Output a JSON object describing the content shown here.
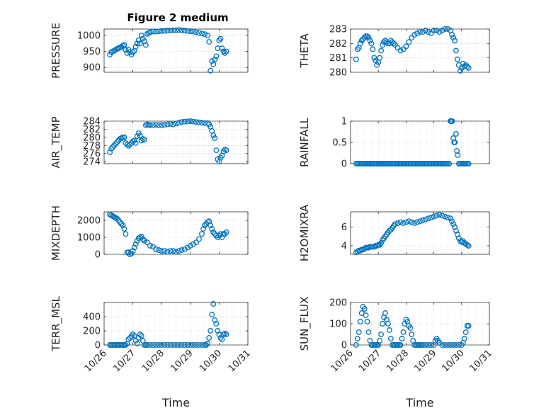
{
  "accent_color": "#0072BD",
  "chart_data": {
    "type": "scatter",
    "title": "Figure 2 medium",
    "time_tick_labels": [
      "10/26",
      "10/27",
      "10/28",
      "10/29",
      "10/30",
      "10/31"
    ],
    "xlim": [
      26,
      31
    ],
    "xlabel": "Time",
    "subplots": [
      {
        "ylabel": "PRESSURE",
        "ylim": [
          885,
          1020
        ],
        "yticks": [
          900,
          950,
          1000
        ],
        "x": [
          26.2,
          26.25,
          26.3,
          26.35,
          26.4,
          26.45,
          26.5,
          26.55,
          26.6,
          26.65,
          26.7,
          26.75,
          26.8,
          26.85,
          26.9,
          26.95,
          27.0,
          27.05,
          27.1,
          27.15,
          27.2,
          27.25,
          27.3,
          27.35,
          27.4,
          27.45,
          27.5,
          27.55,
          27.6,
          27.7,
          27.8,
          27.9,
          28.0,
          28.1,
          28.2,
          28.3,
          28.4,
          28.5,
          28.6,
          28.7,
          28.8,
          28.9,
          29.0,
          29.1,
          29.2,
          29.3,
          29.4,
          29.5,
          29.6,
          29.65,
          29.7,
          29.75,
          29.8,
          29.85,
          29.9,
          29.95,
          30.0,
          30.05,
          30.1,
          30.15,
          30.2,
          30.25
        ],
        "y": [
          940,
          948,
          950,
          952,
          955,
          958,
          960,
          962,
          964,
          968,
          970,
          955,
          945,
          955,
          948,
          940,
          948,
          952,
          965,
          975,
          985,
          975,
          1000,
          990,
          982,
          970,
          1005,
          1008,
          1010,
          1012,
          1012,
          1013,
          1014,
          1014,
          1015,
          1015,
          1016,
          1016,
          1017,
          1016,
          1015,
          1014,
          1013,
          1012,
          1010,
          1008,
          1006,
          1004,
          1000,
          980,
          890,
          920,
          910,
          925,
          935,
          960,
          985,
          990,
          960,
          950,
          945,
          950
        ]
      },
      {
        "ylabel": "THETA",
        "ylim": [
          280,
          283
        ],
        "yticks": [
          280,
          281,
          282,
          283
        ],
        "x": [
          26.2,
          26.25,
          26.3,
          26.35,
          26.4,
          26.45,
          26.5,
          26.55,
          26.6,
          26.65,
          26.7,
          26.75,
          26.8,
          26.85,
          26.9,
          26.95,
          27.0,
          27.05,
          27.1,
          27.15,
          27.2,
          27.25,
          27.3,
          27.35,
          27.4,
          27.45,
          27.5,
          27.55,
          27.6,
          27.7,
          27.8,
          27.9,
          28.0,
          28.1,
          28.2,
          28.3,
          28.4,
          28.5,
          28.6,
          28.7,
          28.8,
          28.9,
          29.0,
          29.1,
          29.2,
          29.3,
          29.4,
          29.5,
          29.6,
          29.65,
          29.7,
          29.75,
          29.8,
          29.85,
          29.9,
          29.95,
          30.0,
          30.05,
          30.1,
          30.15,
          30.2,
          30.25
        ],
        "y": [
          280.9,
          281.6,
          281.7,
          282.0,
          282.2,
          282.3,
          282.4,
          282.5,
          282.5,
          282.4,
          282.2,
          282.0,
          281.6,
          281.0,
          280.8,
          280.5,
          280.7,
          281.0,
          281.5,
          281.9,
          282.1,
          282.2,
          282.1,
          282.0,
          282.0,
          282.2,
          282.1,
          282.0,
          281.9,
          281.7,
          281.5,
          281.6,
          281.8,
          282.1,
          282.4,
          282.6,
          282.7,
          282.8,
          282.8,
          282.9,
          282.8,
          282.7,
          282.9,
          282.9,
          282.8,
          282.9,
          283.0,
          283.0,
          282.9,
          282.6,
          282.4,
          282.2,
          281.5,
          280.9,
          280.5,
          280.1,
          280.3,
          280.6,
          280.4,
          280.5,
          280.4,
          280.3
        ]
      },
      {
        "ylabel": "AIR_TEMP",
        "ylim": [
          273.5,
          284
        ],
        "yticks": [
          274,
          276,
          278,
          280,
          282,
          284
        ],
        "x": [
          26.2,
          26.25,
          26.3,
          26.35,
          26.4,
          26.45,
          26.5,
          26.55,
          26.6,
          26.65,
          26.7,
          26.75,
          26.8,
          26.85,
          26.9,
          26.95,
          27.0,
          27.05,
          27.1,
          27.15,
          27.2,
          27.25,
          27.3,
          27.35,
          27.4,
          27.45,
          27.5,
          27.55,
          27.6,
          27.7,
          27.8,
          27.9,
          28.0,
          28.1,
          28.2,
          28.3,
          28.4,
          28.5,
          28.6,
          28.7,
          28.8,
          28.9,
          29.0,
          29.1,
          29.2,
          29.3,
          29.4,
          29.5,
          29.6,
          29.65,
          29.7,
          29.75,
          29.8,
          29.85,
          29.9,
          29.95,
          30.0,
          30.05,
          30.1,
          30.15,
          30.2,
          30.25
        ],
        "y": [
          276.3,
          277.2,
          277.6,
          278.0,
          278.4,
          278.8,
          279.2,
          279.6,
          279.8,
          280.0,
          280.0,
          278.6,
          278.2,
          277.9,
          278.2,
          278.6,
          279.0,
          279.2,
          278.6,
          280.3,
          281.0,
          280.4,
          279.2,
          279.6,
          279.4,
          283.0,
          283.2,
          283.1,
          283.0,
          283.0,
          283.1,
          283.0,
          283.0,
          283.1,
          283.2,
          283.3,
          283.2,
          283.4,
          283.6,
          283.8,
          283.9,
          283.9,
          284.0,
          283.9,
          283.8,
          283.7,
          283.6,
          283.5,
          283.5,
          283.2,
          282.6,
          281.6,
          280.5,
          279.8,
          276.8,
          274.6,
          274.0,
          275.0,
          275.5,
          276.5,
          277.0,
          276.8
        ]
      },
      {
        "ylabel": "RAINFALL",
        "ylim": [
          0,
          1
        ],
        "yticks": [
          0,
          0.5,
          1
        ],
        "x": [
          26.2,
          26.25,
          26.3,
          26.35,
          26.4,
          26.45,
          26.5,
          26.55,
          26.6,
          26.65,
          26.7,
          26.75,
          26.8,
          26.85,
          26.9,
          26.95,
          27.0,
          27.05,
          27.1,
          27.15,
          27.2,
          27.25,
          27.3,
          27.35,
          27.4,
          27.45,
          27.5,
          27.55,
          27.6,
          27.65,
          27.7,
          27.75,
          27.8,
          27.85,
          27.9,
          27.95,
          28.0,
          28.05,
          28.1,
          28.15,
          28.2,
          28.25,
          28.3,
          28.35,
          28.4,
          28.45,
          28.5,
          28.55,
          28.6,
          28.65,
          28.7,
          28.75,
          28.8,
          28.85,
          28.9,
          28.95,
          29.0,
          29.05,
          29.1,
          29.15,
          29.2,
          29.25,
          29.3,
          29.35,
          29.4,
          29.45,
          29.5,
          29.55,
          29.6,
          29.63,
          29.66,
          29.7,
          29.73,
          29.76,
          29.8,
          29.83,
          29.86,
          29.9,
          29.95,
          30.0,
          30.05,
          30.1,
          30.15,
          30.2,
          30.25
        ],
        "y": [
          0,
          0,
          0,
          0,
          0,
          0,
          0,
          0,
          0,
          0,
          0,
          0,
          0,
          0,
          0,
          0,
          0,
          0,
          0,
          0,
          0,
          0,
          0,
          0,
          0,
          0,
          0,
          0,
          0,
          0,
          0,
          0,
          0,
          0,
          0,
          0,
          0,
          0,
          0,
          0,
          0,
          0,
          0,
          0,
          0,
          0,
          0,
          0,
          0,
          0,
          0,
          0,
          0,
          0,
          0,
          0,
          0,
          0,
          0,
          0,
          0,
          0,
          0,
          0,
          0,
          0,
          0,
          0,
          1,
          1,
          1,
          0.6,
          0.5,
          0.5,
          0.7,
          0.3,
          0.2,
          0,
          0,
          0,
          0,
          0,
          0,
          0,
          0
        ]
      },
      {
        "ylabel": "MIXDEPTH",
        "ylim": [
          0,
          2500
        ],
        "yticks": [
          0,
          1000,
          2000
        ],
        "x": [
          26.2,
          26.25,
          26.3,
          26.35,
          26.4,
          26.45,
          26.5,
          26.55,
          26.6,
          26.65,
          26.7,
          26.75,
          26.8,
          26.85,
          26.9,
          26.95,
          27.0,
          27.05,
          27.1,
          27.15,
          27.2,
          27.25,
          27.3,
          27.35,
          27.4,
          27.5,
          27.6,
          27.7,
          27.8,
          27.9,
          28.0,
          28.1,
          28.2,
          28.3,
          28.4,
          28.5,
          28.6,
          28.7,
          28.8,
          28.9,
          29.0,
          29.1,
          29.2,
          29.3,
          29.4,
          29.45,
          29.5,
          29.55,
          29.6,
          29.65,
          29.7,
          29.75,
          29.8,
          29.85,
          29.9,
          29.95,
          30.0,
          30.05,
          30.1,
          30.15,
          30.2,
          30.25
        ],
        "y": [
          2350,
          2300,
          2250,
          2200,
          2150,
          2100,
          2000,
          1900,
          1800,
          1700,
          1500,
          1200,
          100,
          120,
          0,
          50,
          200,
          400,
          600,
          800,
          950,
          1000,
          1050,
          900,
          800,
          700,
          500,
          450,
          300,
          250,
          200,
          200,
          150,
          200,
          200,
          150,
          200,
          250,
          300,
          400,
          500,
          600,
          700,
          900,
          1200,
          1500,
          1700,
          1800,
          1900,
          1950,
          1700,
          1500,
          1300,
          1200,
          1100,
          1000,
          1100,
          1200,
          1000,
          1200,
          1200,
          1300
        ]
      },
      {
        "ylabel": "H2OMIXRA",
        "ylim": [
          3.1,
          7.6
        ],
        "yticks": [
          4,
          6
        ],
        "x": [
          26.2,
          26.25,
          26.3,
          26.35,
          26.4,
          26.45,
          26.5,
          26.55,
          26.6,
          26.65,
          26.7,
          26.75,
          26.8,
          26.85,
          26.9,
          26.95,
          27.0,
          27.05,
          27.1,
          27.15,
          27.2,
          27.25,
          27.3,
          27.35,
          27.4,
          27.45,
          27.5,
          27.55,
          27.6,
          27.7,
          27.8,
          27.9,
          28.0,
          28.1,
          28.2,
          28.3,
          28.4,
          28.5,
          28.6,
          28.7,
          28.8,
          28.9,
          29.0,
          29.1,
          29.2,
          29.3,
          29.4,
          29.5,
          29.6,
          29.65,
          29.7,
          29.75,
          29.8,
          29.85,
          29.9,
          29.95,
          30.0,
          30.05,
          30.1,
          30.15,
          30.2,
          30.25
        ],
        "y": [
          3.3,
          3.4,
          3.5,
          3.5,
          3.6,
          3.6,
          3.7,
          3.8,
          3.8,
          3.8,
          3.9,
          3.9,
          3.9,
          3.9,
          4.0,
          4.0,
          4.1,
          4.1,
          4.3,
          4.6,
          4.8,
          5.0,
          5.2,
          5.4,
          5.6,
          5.7,
          5.9,
          6.1,
          6.3,
          6.4,
          6.5,
          6.4,
          6.5,
          6.6,
          6.5,
          6.4,
          6.5,
          6.6,
          6.7,
          6.8,
          6.9,
          7.0,
          7.1,
          7.2,
          7.3,
          7.2,
          7.1,
          7.0,
          6.9,
          6.6,
          6.3,
          6.0,
          5.6,
          5.2,
          4.8,
          4.5,
          4.4,
          4.5,
          4.3,
          4.2,
          4.1,
          4.0
        ]
      },
      {
        "ylabel": "TERR_MSL",
        "ylim": [
          0,
          600
        ],
        "yticks": [
          0,
          200,
          400
        ],
        "x": [
          26.2,
          26.25,
          26.3,
          26.35,
          26.4,
          26.45,
          26.5,
          26.55,
          26.6,
          26.65,
          26.7,
          26.75,
          26.8,
          26.85,
          26.9,
          26.95,
          27.0,
          27.05,
          27.1,
          27.15,
          27.2,
          27.25,
          27.3,
          27.35,
          27.4,
          27.45,
          27.5,
          27.6,
          27.7,
          27.8,
          27.9,
          28.0,
          28.1,
          28.2,
          28.3,
          28.4,
          28.5,
          28.6,
          28.7,
          28.8,
          28.9,
          29.0,
          29.1,
          29.2,
          29.3,
          29.4,
          29.5,
          29.55,
          29.6,
          29.65,
          29.7,
          29.75,
          29.8,
          29.85,
          29.9,
          29.95,
          30.0,
          30.05,
          30.1,
          30.15,
          30.2,
          30.25
        ],
        "y": [
          0,
          0,
          0,
          0,
          0,
          0,
          0,
          0,
          0,
          0,
          0,
          0,
          20,
          80,
          100,
          120,
          150,
          130,
          60,
          20,
          100,
          150,
          130,
          60,
          0,
          0,
          0,
          0,
          0,
          0,
          0,
          0,
          0,
          0,
          0,
          0,
          0,
          0,
          0,
          0,
          0,
          0,
          0,
          0,
          0,
          0,
          0,
          0,
          20,
          100,
          200,
          430,
          580,
          350,
          300,
          200,
          150,
          100,
          80,
          150,
          160,
          150
        ]
      },
      {
        "ylabel": "SUN_FLUX",
        "ylim": [
          0,
          200
        ],
        "yticks": [
          0,
          100,
          200
        ],
        "x": [
          26.2,
          26.25,
          26.3,
          26.35,
          26.4,
          26.45,
          26.5,
          26.55,
          26.6,
          26.65,
          26.7,
          26.75,
          26.8,
          26.85,
          26.9,
          26.95,
          27.0,
          27.05,
          27.1,
          27.15,
          27.2,
          27.25,
          27.3,
          27.35,
          27.4,
          27.45,
          27.5,
          27.55,
          27.6,
          27.65,
          27.7,
          27.75,
          27.8,
          27.85,
          27.9,
          27.95,
          28.0,
          28.05,
          28.1,
          28.15,
          28.2,
          28.25,
          28.3,
          28.35,
          28.4,
          28.45,
          28.5,
          28.55,
          28.6,
          28.7,
          28.8,
          28.9,
          29.0,
          29.05,
          29.1,
          29.15,
          29.2,
          29.3,
          29.4,
          29.5,
          29.6,
          29.7,
          29.8,
          29.9,
          30.0,
          30.05,
          30.1,
          30.15,
          30.2,
          30.25
        ],
        "y": [
          0,
          30,
          60,
          110,
          150,
          180,
          170,
          140,
          110,
          60,
          20,
          0,
          0,
          0,
          0,
          0,
          0,
          20,
          50,
          100,
          130,
          150,
          120,
          100,
          70,
          30,
          0,
          0,
          0,
          0,
          0,
          0,
          0,
          30,
          60,
          100,
          120,
          110,
          90,
          80,
          50,
          20,
          0,
          0,
          0,
          0,
          0,
          0,
          0,
          0,
          0,
          0,
          0,
          20,
          30,
          20,
          10,
          0,
          0,
          0,
          0,
          0,
          0,
          0,
          0,
          10,
          30,
          60,
          90,
          90
        ]
      }
    ]
  }
}
